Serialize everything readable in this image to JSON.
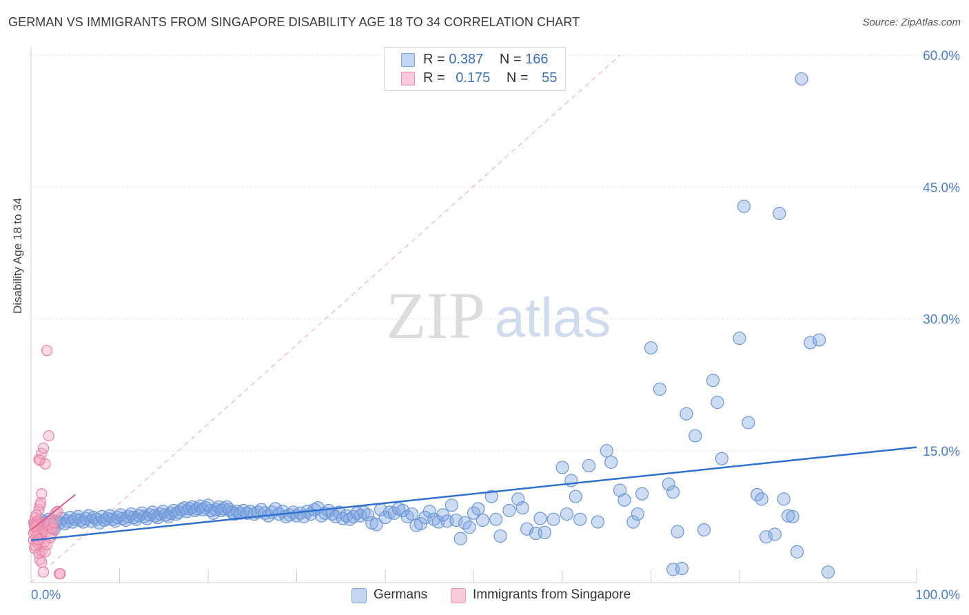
{
  "header": {
    "title": "GERMAN VS IMMIGRANTS FROM SINGAPORE DISABILITY AGE 18 TO 34 CORRELATION CHART",
    "source": "Source: ZipAtlas.com"
  },
  "watermark": {
    "zip": "ZIP",
    "atlas": "atlas"
  },
  "legend_top": {
    "rows": [
      {
        "r_label": "R = ",
        "r_value": "0.387",
        "n_label": "N = ",
        "n_value": "166",
        "color": "#7ba3e0"
      },
      {
        "r_label": "R = ",
        "r_value": "0.175",
        "n_label": "N = ",
        "n_value": "55",
        "color": "#f08fae"
      }
    ]
  },
  "chart_data": {
    "type": "scatter",
    "title": "GERMAN VS IMMIGRANTS FROM SINGAPORE DISABILITY AGE 18 TO 34 CORRELATION CHART",
    "xlabel": "",
    "ylabel": "Disability Age 18 to 34",
    "xlim": [
      0,
      100
    ],
    "ylim": [
      0,
      62
    ],
    "x_tick_labels": [
      "0.0%",
      "100.0%"
    ],
    "y_ticks": [
      15,
      30,
      45,
      60
    ],
    "y_tick_labels": [
      "15.0%",
      "30.0%",
      "45.0%",
      "60.0%"
    ],
    "grid": true,
    "legend_placement": "bottom",
    "series": [
      {
        "name": "Germans",
        "color": "#7ba3e0",
        "stroke": "#6a96d8",
        "trend": {
          "x": [
            0,
            100
          ],
          "y": [
            4.8,
            15.4
          ],
          "color": "#2e6fd0"
        },
        "points": [
          [
            0.5,
            6.8
          ],
          [
            0.8,
            6.2
          ],
          [
            1.1,
            7.1
          ],
          [
            1.4,
            6.5
          ],
          [
            1.7,
            6.9
          ],
          [
            2.0,
            7.2
          ],
          [
            2.3,
            6.6
          ],
          [
            2.6,
            6.1
          ],
          [
            2.9,
            7.0
          ],
          [
            3.2,
            6.8
          ],
          [
            3.5,
            7.3
          ],
          [
            3.8,
            6.7
          ],
          [
            4.1,
            7.0
          ],
          [
            4.4,
            7.4
          ],
          [
            4.7,
            6.9
          ],
          [
            5.0,
            7.2
          ],
          [
            5.3,
            7.5
          ],
          [
            5.6,
            7.1
          ],
          [
            5.9,
            6.9
          ],
          [
            6.2,
            7.3
          ],
          [
            6.5,
            7.6
          ],
          [
            6.8,
            7.0
          ],
          [
            7.1,
            7.4
          ],
          [
            7.4,
            7.2
          ],
          [
            7.7,
            6.8
          ],
          [
            8.0,
            7.5
          ],
          [
            8.3,
            7.1
          ],
          [
            8.6,
            7.3
          ],
          [
            8.9,
            7.6
          ],
          [
            9.2,
            7.2
          ],
          [
            9.5,
            7.0
          ],
          [
            9.8,
            7.4
          ],
          [
            10.1,
            7.7
          ],
          [
            10.4,
            7.3
          ],
          [
            10.7,
            7.1
          ],
          [
            11.0,
            7.5
          ],
          [
            11.3,
            7.8
          ],
          [
            11.6,
            7.4
          ],
          [
            11.9,
            7.2
          ],
          [
            12.2,
            7.6
          ],
          [
            12.5,
            7.9
          ],
          [
            12.8,
            7.5
          ],
          [
            13.1,
            7.3
          ],
          [
            13.4,
            7.7
          ],
          [
            13.7,
            8.0
          ],
          [
            14.0,
            7.6
          ],
          [
            14.3,
            7.4
          ],
          [
            14.6,
            7.8
          ],
          [
            14.9,
            8.1
          ],
          [
            15.2,
            7.7
          ],
          [
            15.5,
            7.5
          ],
          [
            15.8,
            7.9
          ],
          [
            16.1,
            8.2
          ],
          [
            16.4,
            7.8
          ],
          [
            16.7,
            8.0
          ],
          [
            17.0,
            8.3
          ],
          [
            17.3,
            8.5
          ],
          [
            17.6,
            8.1
          ],
          [
            17.9,
            8.4
          ],
          [
            18.2,
            8.6
          ],
          [
            18.5,
            8.2
          ],
          [
            18.8,
            8.4
          ],
          [
            19.1,
            8.7
          ],
          [
            19.4,
            8.3
          ],
          [
            19.7,
            8.5
          ],
          [
            20.0,
            8.8
          ],
          [
            20.3,
            8.2
          ],
          [
            20.6,
            7.9
          ],
          [
            20.9,
            8.3
          ],
          [
            21.2,
            8.6
          ],
          [
            21.5,
            8.2
          ],
          [
            21.8,
            8.4
          ],
          [
            22.1,
            8.6
          ],
          [
            22.4,
            8.3
          ],
          [
            22.7,
            8.0
          ],
          [
            23.0,
            7.8
          ],
          [
            23.3,
            8.1
          ],
          [
            23.6,
            7.9
          ],
          [
            24.0,
            8.2
          ],
          [
            24.4,
            7.9
          ],
          [
            24.8,
            8.1
          ],
          [
            25.2,
            7.8
          ],
          [
            25.6,
            8.0
          ],
          [
            26.0,
            8.3
          ],
          [
            26.4,
            7.9
          ],
          [
            26.8,
            7.6
          ],
          [
            27.2,
            8.0
          ],
          [
            27.6,
            8.4
          ],
          [
            28.0,
            7.8
          ],
          [
            28.4,
            8.1
          ],
          [
            28.8,
            7.5
          ],
          [
            29.2,
            7.7
          ],
          [
            29.6,
            8.0
          ],
          [
            30.0,
            7.6
          ],
          [
            30.4,
            7.9
          ],
          [
            30.8,
            7.5
          ],
          [
            31.2,
            8.1
          ],
          [
            31.6,
            7.8
          ],
          [
            32.0,
            8.3
          ],
          [
            32.4,
            8.5
          ],
          [
            32.8,
            7.6
          ],
          [
            33.2,
            7.9
          ],
          [
            33.6,
            8.2
          ],
          [
            34.0,
            7.8
          ],
          [
            34.4,
            7.5
          ],
          [
            34.8,
            8.0
          ],
          [
            35.2,
            7.3
          ],
          [
            35.6,
            7.6
          ],
          [
            36.0,
            7.2
          ],
          [
            36.4,
            7.5
          ],
          [
            36.8,
            7.9
          ],
          [
            37.2,
            7.6
          ],
          [
            37.6,
            8.0
          ],
          [
            38.0,
            7.7
          ],
          [
            38.5,
            6.8
          ],
          [
            39.0,
            6.6
          ],
          [
            39.5,
            8.3
          ],
          [
            40.0,
            7.4
          ],
          [
            40.5,
            8.0
          ],
          [
            41.0,
            7.9
          ],
          [
            41.5,
            8.4
          ],
          [
            42.0,
            8.2
          ],
          [
            42.5,
            7.5
          ],
          [
            43.0,
            7.8
          ],
          [
            43.5,
            6.5
          ],
          [
            44.0,
            6.7
          ],
          [
            44.5,
            7.4
          ],
          [
            45.0,
            8.1
          ],
          [
            45.5,
            7.2
          ],
          [
            46.0,
            6.9
          ],
          [
            46.5,
            7.7
          ],
          [
            47.0,
            7.0
          ],
          [
            47.5,
            8.8
          ],
          [
            48.0,
            7.1
          ],
          [
            48.5,
            5.0
          ],
          [
            49.0,
            6.8
          ],
          [
            49.5,
            6.3
          ],
          [
            50.0,
            7.9
          ],
          [
            50.5,
            8.4
          ],
          [
            51.0,
            7.1
          ],
          [
            52.0,
            9.8
          ],
          [
            52.5,
            7.2
          ],
          [
            53.0,
            5.3
          ],
          [
            54.0,
            8.2
          ],
          [
            55.0,
            9.5
          ],
          [
            55.5,
            8.5
          ],
          [
            56.0,
            6.1
          ],
          [
            57.0,
            5.6
          ],
          [
            57.5,
            7.3
          ],
          [
            58.0,
            5.7
          ],
          [
            59.0,
            7.2
          ],
          [
            60.0,
            13.1
          ],
          [
            60.5,
            7.8
          ],
          [
            61.0,
            11.6
          ],
          [
            61.5,
            9.8
          ],
          [
            62.0,
            7.2
          ],
          [
            63.0,
            13.3
          ],
          [
            64.0,
            6.9
          ],
          [
            65.0,
            15.0
          ],
          [
            65.5,
            13.7
          ],
          [
            66.5,
            10.5
          ],
          [
            67.0,
            9.4
          ],
          [
            68.0,
            6.9
          ],
          [
            68.5,
            7.8
          ],
          [
            69.0,
            10.1
          ],
          [
            70.0,
            26.7
          ],
          [
            71.0,
            22.0
          ],
          [
            72.0,
            11.2
          ],
          [
            72.5,
            10.3
          ],
          [
            73.0,
            5.8
          ],
          [
            74.0,
            19.2
          ],
          [
            75.0,
            16.7
          ],
          [
            76.0,
            6.0
          ],
          [
            77.0,
            23.0
          ],
          [
            77.5,
            20.5
          ],
          [
            78.0,
            14.1
          ],
          [
            80.0,
            27.8
          ],
          [
            81.0,
            18.2
          ],
          [
            82.0,
            10.0
          ],
          [
            82.5,
            9.5
          ],
          [
            83.0,
            5.2
          ],
          [
            84.0,
            5.5
          ],
          [
            85.0,
            9.5
          ],
          [
            85.5,
            7.6
          ],
          [
            86.0,
            7.5
          ],
          [
            86.5,
            3.5
          ],
          [
            88.0,
            27.3
          ],
          [
            89.0,
            27.6
          ],
          [
            90.0,
            1.2
          ],
          [
            72.5,
            1.5
          ],
          [
            73.5,
            1.6
          ],
          [
            80.5,
            42.8
          ],
          [
            84.5,
            42.0
          ],
          [
            87.0,
            57.3
          ]
        ]
      },
      {
        "name": "Immigrants from Singapore",
        "color": "#f4a7c0",
        "stroke": "#ec7fa2",
        "trend": {
          "x": [
            0,
            5
          ],
          "y": [
            6.0,
            10.0
          ],
          "color": "#e05888"
        },
        "points": [
          [
            0.3,
            6.8
          ],
          [
            0.4,
            5.9
          ],
          [
            0.5,
            6.3
          ],
          [
            0.6,
            5.2
          ],
          [
            0.7,
            4.7
          ],
          [
            0.8,
            7.1
          ],
          [
            0.9,
            6.0
          ],
          [
            1.0,
            5.5
          ],
          [
            1.1,
            4.1
          ],
          [
            1.2,
            3.6
          ],
          [
            0.3,
            4.8
          ],
          [
            0.4,
            3.9
          ],
          [
            0.5,
            7.4
          ],
          [
            0.6,
            6.6
          ],
          [
            0.7,
            5.7
          ],
          [
            0.8,
            4.4
          ],
          [
            0.9,
            8.3
          ],
          [
            1.0,
            8.8
          ],
          [
            1.1,
            9.1
          ],
          [
            1.2,
            10.1
          ],
          [
            0.3,
            5.6
          ],
          [
            0.5,
            4.2
          ],
          [
            0.7,
            6.9
          ],
          [
            0.9,
            3.3
          ],
          [
            1.1,
            5.0
          ],
          [
            1.3,
            6.2
          ],
          [
            1.5,
            4.6
          ],
          [
            1.7,
            5.8
          ],
          [
            1.9,
            6.5
          ],
          [
            2.1,
            7.0
          ],
          [
            2.3,
            5.4
          ],
          [
            2.5,
            6.1
          ],
          [
            0.4,
            6.4
          ],
          [
            0.6,
            7.7
          ],
          [
            0.8,
            4.9
          ],
          [
            1.0,
            2.6
          ],
          [
            1.2,
            2.3
          ],
          [
            1.4,
            1.2
          ],
          [
            1.6,
            3.5
          ],
          [
            1.8,
            4.3
          ],
          [
            2.0,
            6.7
          ],
          [
            2.2,
            5.1
          ],
          [
            2.4,
            6.2
          ],
          [
            2.6,
            6.8
          ],
          [
            2.8,
            7.9
          ],
          [
            3.0,
            8.1
          ],
          [
            0.9,
            14.0
          ],
          [
            1.0,
            13.9
          ],
          [
            1.2,
            14.7
          ],
          [
            1.4,
            15.3
          ],
          [
            1.6,
            13.5
          ],
          [
            1.8,
            26.4
          ],
          [
            2.0,
            16.7
          ],
          [
            3.2,
            1.0
          ],
          [
            3.3,
            1.0
          ]
        ]
      }
    ],
    "reference_line": {
      "x": [
        0,
        66.5
      ],
      "y": [
        0,
        60
      ],
      "style": "dashed",
      "color": "#f0a0b8"
    }
  },
  "legend_bottom": {
    "items": [
      {
        "label": "Germans",
        "color": "#7ba3e0"
      },
      {
        "label": "Immigrants from Singapore",
        "color": "#f4a7c0"
      }
    ]
  }
}
